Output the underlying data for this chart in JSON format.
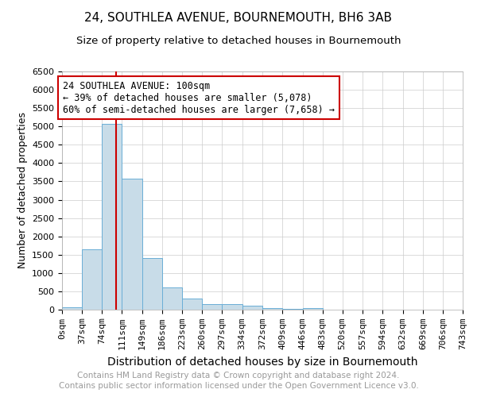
{
  "title": "24, SOUTHLEA AVENUE, BOURNEMOUTH, BH6 3AB",
  "subtitle": "Size of property relative to detached houses in Bournemouth",
  "xlabel": "Distribution of detached houses by size in Bournemouth",
  "ylabel": "Number of detached properties",
  "bin_edges": [
    0,
    37,
    74,
    111,
    149,
    186,
    223,
    260,
    297,
    334,
    372,
    409,
    446,
    483,
    520,
    557,
    594,
    632,
    669,
    706,
    743
  ],
  "bar_heights": [
    75,
    1650,
    5080,
    3580,
    1400,
    600,
    300,
    155,
    150,
    100,
    50,
    30,
    50,
    0,
    0,
    0,
    0,
    0,
    0,
    0
  ],
  "bar_color": "#c8dce8",
  "bar_edge_color": "#6aaed6",
  "property_size": 100,
  "vline_color": "#cc0000",
  "ylim": [
    0,
    6500
  ],
  "yticks": [
    0,
    500,
    1000,
    1500,
    2000,
    2500,
    3000,
    3500,
    4000,
    4500,
    5000,
    5500,
    6000,
    6500
  ],
  "annotation_line1": "24 SOUTHLEA AVENUE: 100sqm",
  "annotation_line2": "← 39% of detached houses are smaller (5,078)",
  "annotation_line3": "60% of semi-detached houses are larger (7,658) →",
  "annotation_box_color": "#ffffff",
  "annotation_box_edge": "#cc0000",
  "footer1": "Contains HM Land Registry data © Crown copyright and database right 2024.",
  "footer2": "Contains public sector information licensed under the Open Government Licence v3.0.",
  "footer_color": "#999999",
  "title_fontsize": 11,
  "subtitle_fontsize": 9.5,
  "xlabel_fontsize": 10,
  "ylabel_fontsize": 9,
  "tick_fontsize": 8,
  "annotation_fontsize": 8.5,
  "footer_fontsize": 7.5
}
